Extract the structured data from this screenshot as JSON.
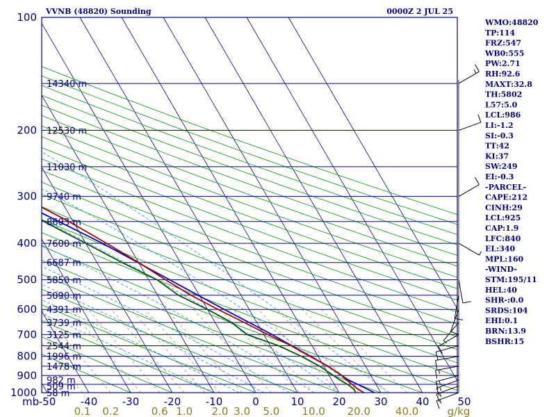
{
  "header": {
    "station": "VVNB (48820) Sounding",
    "time": "0000Z  2 JUL 25"
  },
  "indices": [
    "WMO:48820",
    "TP:114",
    "FRZ:547",
    "WB0:555",
    "PW:2.71",
    "RH:92.6",
    "MAXT:32.8",
    "TH:5802",
    "L57:5.0",
    "LCL:986",
    "LI:-1.2",
    "SI:-0.3",
    "TT:42",
    "KI:37",
    "SW:249",
    "EI:-0.3",
    "-PARCEL-",
    "CAPE:212",
    "CINH:29",
    "LCL:925",
    "CAP:1.9",
    "LFC:840",
    "EL:340",
    "MPL:160",
    "-WIND-",
    "STM:195/11",
    "HEL:40",
    "SHR-:0.0",
    "SRDS:104",
    "EHI:0.1",
    "BRN:13.9",
    "BSHR:15"
  ],
  "colors": {
    "frame": "#000080",
    "isotherm": "#000080",
    "dry_adiabat": "#009900",
    "moist_adiabat": "#3399dd",
    "mixing_ratio": "#a89850",
    "temperature": "#aa0000",
    "dewpoint": "#005500",
    "parcel": "#0000cc",
    "wind": "#000000"
  },
  "chart_data": {
    "type": "skew-t",
    "title": "VVNB (48820) Sounding",
    "pressure_unit": "mb",
    "temperature_unit": "C",
    "mixing_ratio_unit": "g/kg",
    "pressure_range": [
      1000,
      100
    ],
    "temperature_range": [
      -50,
      50
    ],
    "pressure_labels": [
      100,
      200,
      300,
      400,
      500,
      600,
      700,
      800,
      900,
      1000
    ],
    "temperature_ticks": [
      -50,
      -40,
      -30,
      -20,
      -10,
      0,
      10,
      20,
      30,
      40,
      50
    ],
    "mixing_ratio_labels": [
      "0.1",
      "0.2",
      "0.6",
      "1.0",
      "2.0",
      "3.0",
      "5.0",
      "10.0",
      "20.0",
      "40.0"
    ],
    "height_labels": [
      {
        "p": 1000,
        "label": "58 m"
      },
      {
        "p": 960,
        "label": "509 m"
      },
      {
        "p": 925,
        "label": "982 m"
      },
      {
        "p": 850,
        "label": "1478 m"
      },
      {
        "p": 800,
        "label": "1996 m"
      },
      {
        "p": 750,
        "label": "2544 m"
      },
      {
        "p": 700,
        "label": "3125 m"
      },
      {
        "p": 650,
        "label": "3739 m"
      },
      {
        "p": 600,
        "label": "4391 m"
      },
      {
        "p": 550,
        "label": "5090 m"
      },
      {
        "p": 500,
        "label": "5850 m"
      },
      {
        "p": 450,
        "label": "6687 m"
      },
      {
        "p": 400,
        "label": "7600 m"
      },
      {
        "p": 350,
        "label": "8603 m"
      },
      {
        "p": 300,
        "label": "9740 m"
      },
      {
        "p": 250,
        "label": "11030 m"
      },
      {
        "p": 200,
        "label": "12530 m"
      },
      {
        "p": 150,
        "label": "14340 m"
      }
    ],
    "temperature_profile": [
      {
        "p": 1000,
        "t": 26
      },
      {
        "p": 980,
        "t": 25
      },
      {
        "p": 960,
        "t": 24.5
      },
      {
        "p": 925,
        "t": 23.5
      },
      {
        "p": 900,
        "t": 23
      },
      {
        "p": 850,
        "t": 21
      },
      {
        "p": 800,
        "t": 18
      },
      {
        "p": 750,
        "t": 15
      },
      {
        "p": 700,
        "t": 11
      },
      {
        "p": 650,
        "t": 7
      },
      {
        "p": 600,
        "t": 2.5
      },
      {
        "p": 550,
        "t": -2
      },
      {
        "p": 500,
        "t": -6
      },
      {
        "p": 450,
        "t": -10
      },
      {
        "p": 400,
        "t": -15
      },
      {
        "p": 350,
        "t": -21
      },
      {
        "p": 300,
        "t": -29
      },
      {
        "p": 250,
        "t": -39
      },
      {
        "p": 200,
        "t": -50
      },
      {
        "p": 175,
        "t": -57
      },
      {
        "p": 150,
        "t": -66
      },
      {
        "p": 130,
        "t": -73
      },
      {
        "p": 115,
        "t": -78
      },
      {
        "p": 105,
        "t": -75
      }
    ],
    "dewpoint_profile": [
      {
        "p": 1000,
        "t": 24
      },
      {
        "p": 980,
        "t": 24
      },
      {
        "p": 960,
        "t": 23.5
      },
      {
        "p": 925,
        "t": 22
      },
      {
        "p": 900,
        "t": 21
      },
      {
        "p": 850,
        "t": 19
      },
      {
        "p": 800,
        "t": 16
      },
      {
        "p": 750,
        "t": 12
      },
      {
        "p": 700,
        "t": 6
      },
      {
        "p": 650,
        "t": 4
      },
      {
        "p": 600,
        "t": 0
      },
      {
        "p": 550,
        "t": -5
      },
      {
        "p": 500,
        "t": -8
      },
      {
        "p": 450,
        "t": -14
      },
      {
        "p": 400,
        "t": -20
      },
      {
        "p": 350,
        "t": -27
      },
      {
        "p": 320,
        "t": -32
      },
      {
        "p": 300,
        "t": -42
      },
      {
        "p": 280,
        "t": -44
      },
      {
        "p": 250,
        "t": -47
      },
      {
        "p": 200,
        "t": -65
      },
      {
        "p": 185,
        "t": -70
      },
      {
        "p": 160,
        "t": -78
      },
      {
        "p": 145,
        "t": -84
      },
      {
        "p": 120,
        "t": -86
      },
      {
        "p": 105,
        "t": -82
      }
    ],
    "parcel_profile": [
      {
        "p": 1000,
        "t": 28.5
      },
      {
        "p": 925,
        "t": 24
      },
      {
        "p": 850,
        "t": 21
      },
      {
        "p": 700,
        "t": 12
      },
      {
        "p": 600,
        "t": 4
      },
      {
        "p": 500,
        "t": -5
      },
      {
        "p": 400,
        "t": -16
      },
      {
        "p": 300,
        "t": -32
      },
      {
        "p": 250,
        "t": -43
      },
      {
        "p": 200,
        "t": -57
      },
      {
        "p": 150,
        "t": -74
      },
      {
        "p": 105,
        "t": -92
      }
    ],
    "wind_barbs": [
      {
        "p": 1000,
        "dir": 250,
        "kt": 15
      },
      {
        "p": 960,
        "dir": 250,
        "kt": 15
      },
      {
        "p": 925,
        "dir": 250,
        "kt": 15
      },
      {
        "p": 900,
        "dir": 255,
        "kt": 15
      },
      {
        "p": 850,
        "dir": 260,
        "kt": 15
      },
      {
        "p": 800,
        "dir": 260,
        "kt": 10
      },
      {
        "p": 750,
        "dir": 255,
        "kt": 10
      },
      {
        "p": 700,
        "dir": 240,
        "kt": 10
      },
      {
        "p": 650,
        "dir": 220,
        "kt": 5
      },
      {
        "p": 600,
        "dir": 200,
        "kt": 10
      },
      {
        "p": 550,
        "dir": 190,
        "kt": 10
      },
      {
        "p": 500,
        "dir": 170,
        "kt": 10
      },
      {
        "p": 400,
        "dir": 120,
        "kt": 5
      },
      {
        "p": 300,
        "dir": 60,
        "kt": 10
      },
      {
        "p": 200,
        "dir": 70,
        "kt": 10
      },
      {
        "p": 150,
        "dir": 60,
        "kt": 15
      }
    ]
  }
}
